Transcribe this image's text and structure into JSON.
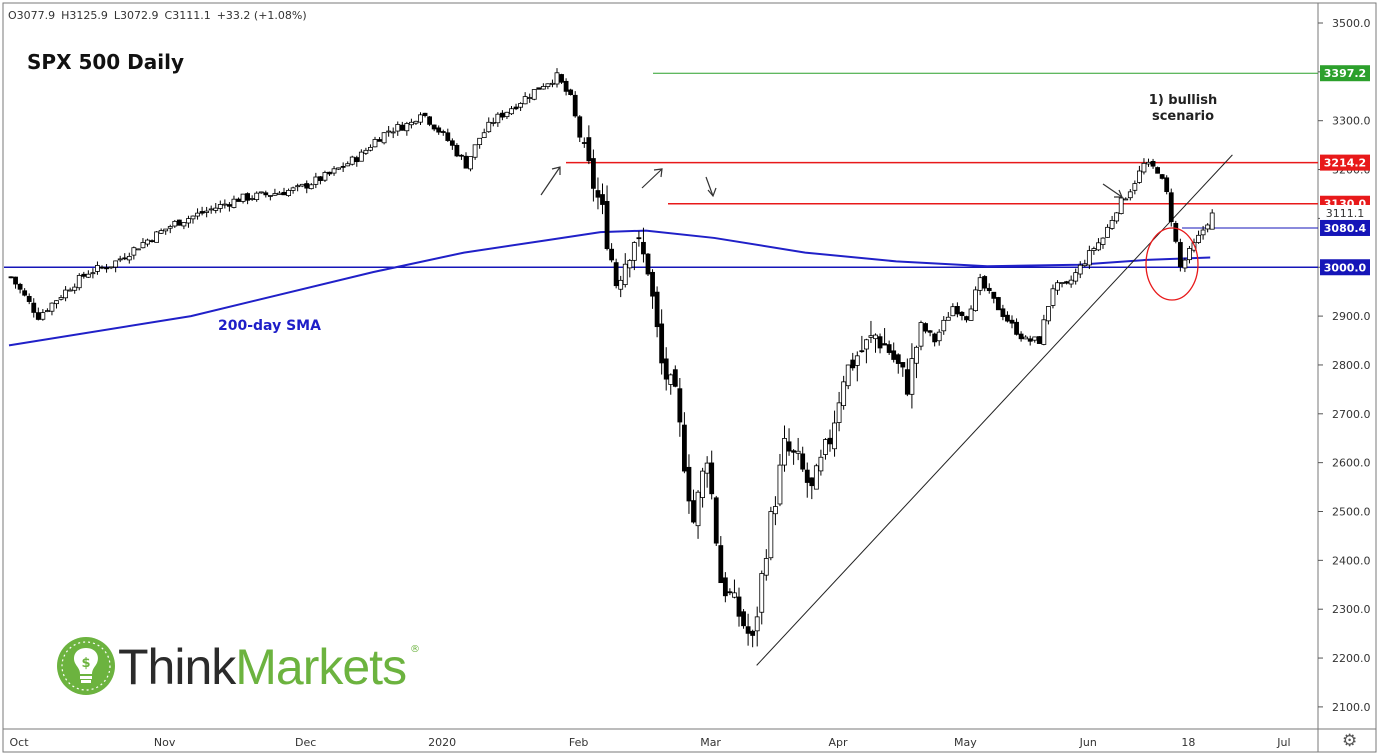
{
  "header": {
    "open": "O3077.9",
    "high": "H3125.9",
    "low": "L3072.9",
    "close": "C3111.1",
    "change": "+33.2 (+1.08%)"
  },
  "title": "SPX 500 Daily",
  "annotations": {
    "bullish_line1": "1) bullish",
    "bullish_line2": "scenario",
    "sma_label": "200-day SMA"
  },
  "logo": {
    "think": "Think",
    "markets": "Markets",
    "reg": "®"
  },
  "colors": {
    "up_candle": "#ffffff",
    "down_candle": "#000000",
    "resistance": "#e8191a",
    "support": "#1515b8",
    "sma": "#2020c8",
    "top_line": "#2ca02c",
    "brand_green": "#6cb33f"
  },
  "chart_data": {
    "type": "candlestick",
    "symbol": "SPX 500",
    "timeframe": "Daily",
    "ylim": [
      2060,
      3540
    ],
    "y_ticks": [
      "3500.0",
      "3400.0",
      "3300.0",
      "3200.0",
      "3100.0",
      "3000.0",
      "2900.0",
      "2800.0",
      "2700.0",
      "2600.0",
      "2500.0",
      "2400.0",
      "2300.0",
      "2200.0",
      "2100.0"
    ],
    "x_ticks": [
      "Oct",
      "Nov",
      "Dec",
      "2020",
      "Feb",
      "Mar",
      "Apr",
      "May",
      "Jun",
      "18",
      "Jul"
    ],
    "price_labels": [
      {
        "text": "3397.2",
        "value": 3397.2,
        "style": "green"
      },
      {
        "text": "3214.2",
        "value": 3214.2,
        "style": "red"
      },
      {
        "text": "3130.0",
        "value": 3130.0,
        "style": "red"
      },
      {
        "text": "3111.1",
        "value": 3111.1,
        "style": "plain"
      },
      {
        "text": "3080.4",
        "value": 3080.4,
        "style": "blue"
      },
      {
        "text": "3000.0",
        "value": 3000.0,
        "style": "blue"
      }
    ],
    "horizontal_levels": [
      {
        "value": 3397.2,
        "color": "green"
      },
      {
        "value": 3214.2,
        "color": "red"
      },
      {
        "value": 3130.0,
        "color": "red"
      },
      {
        "value": 3080.4,
        "color": "blue-thin"
      },
      {
        "value": 3000.0,
        "color": "blue"
      }
    ],
    "price_path": [
      [
        0,
        2980
      ],
      [
        6,
        2900
      ],
      [
        13,
        2960
      ],
      [
        17,
        2990
      ],
      [
        22,
        3005
      ],
      [
        29,
        3050
      ],
      [
        36,
        3090
      ],
      [
        43,
        3115
      ],
      [
        50,
        3140
      ],
      [
        57,
        3150
      ],
      [
        63,
        3160
      ],
      [
        70,
        3190
      ],
      [
        77,
        3230
      ],
      [
        80,
        3260
      ],
      [
        83,
        3280
      ],
      [
        88,
        3295
      ],
      [
        90,
        3320
      ],
      [
        96,
        3260
      ],
      [
        100,
        3210
      ],
      [
        103,
        3265
      ],
      [
        106,
        3300
      ],
      [
        112,
        3340
      ],
      [
        117,
        3375
      ],
      [
        120,
        3390
      ],
      [
        123,
        3345
      ],
      [
        126,
        3230
      ],
      [
        130,
        3110
      ],
      [
        133,
        2970
      ],
      [
        137,
        3060
      ],
      [
        140,
        3000
      ],
      [
        143,
        2800
      ],
      [
        146,
        2730
      ],
      [
        150,
        2480
      ],
      [
        153,
        2620
      ],
      [
        156,
        2360
      ],
      [
        160,
        2290
      ],
      [
        163,
        2230
      ],
      [
        166,
        2430
      ],
      [
        170,
        2630
      ],
      [
        173,
        2600
      ],
      [
        176,
        2540
      ],
      [
        180,
        2650
      ],
      [
        183,
        2780
      ],
      [
        186,
        2820
      ],
      [
        190,
        2860
      ],
      [
        193,
        2830
      ],
      [
        197,
        2760
      ],
      [
        200,
        2880
      ],
      [
        203,
        2850
      ],
      [
        207,
        2920
      ],
      [
        210,
        2900
      ],
      [
        213,
        2970
      ],
      [
        216,
        2930
      ],
      [
        220,
        2880
      ],
      [
        223,
        2850
      ],
      [
        226,
        2850
      ],
      [
        229,
        2960
      ],
      [
        232,
        2960
      ],
      [
        235,
        3000
      ],
      [
        238,
        3040
      ],
      [
        240,
        3060
      ],
      [
        243,
        3120
      ],
      [
        246,
        3160
      ],
      [
        249,
        3210
      ],
      [
        252,
        3200
      ],
      [
        254,
        3150
      ],
      [
        257,
        3000
      ],
      [
        259,
        3030
      ],
      [
        261,
        3060
      ],
      [
        264,
        3111
      ]
    ],
    "sma_200": [
      [
        0,
        2840
      ],
      [
        40,
        2900
      ],
      [
        80,
        2990
      ],
      [
        100,
        3030
      ],
      [
        118,
        3055
      ],
      [
        130,
        3072
      ],
      [
        140,
        3075
      ],
      [
        155,
        3060
      ],
      [
        175,
        3030
      ],
      [
        195,
        3012
      ],
      [
        215,
        3002
      ],
      [
        235,
        3005
      ],
      [
        250,
        3015
      ],
      [
        264,
        3020
      ]
    ],
    "trendline": {
      "from": [
        163,
        2185
      ],
      "to": [
        268,
        3230
      ]
    }
  }
}
